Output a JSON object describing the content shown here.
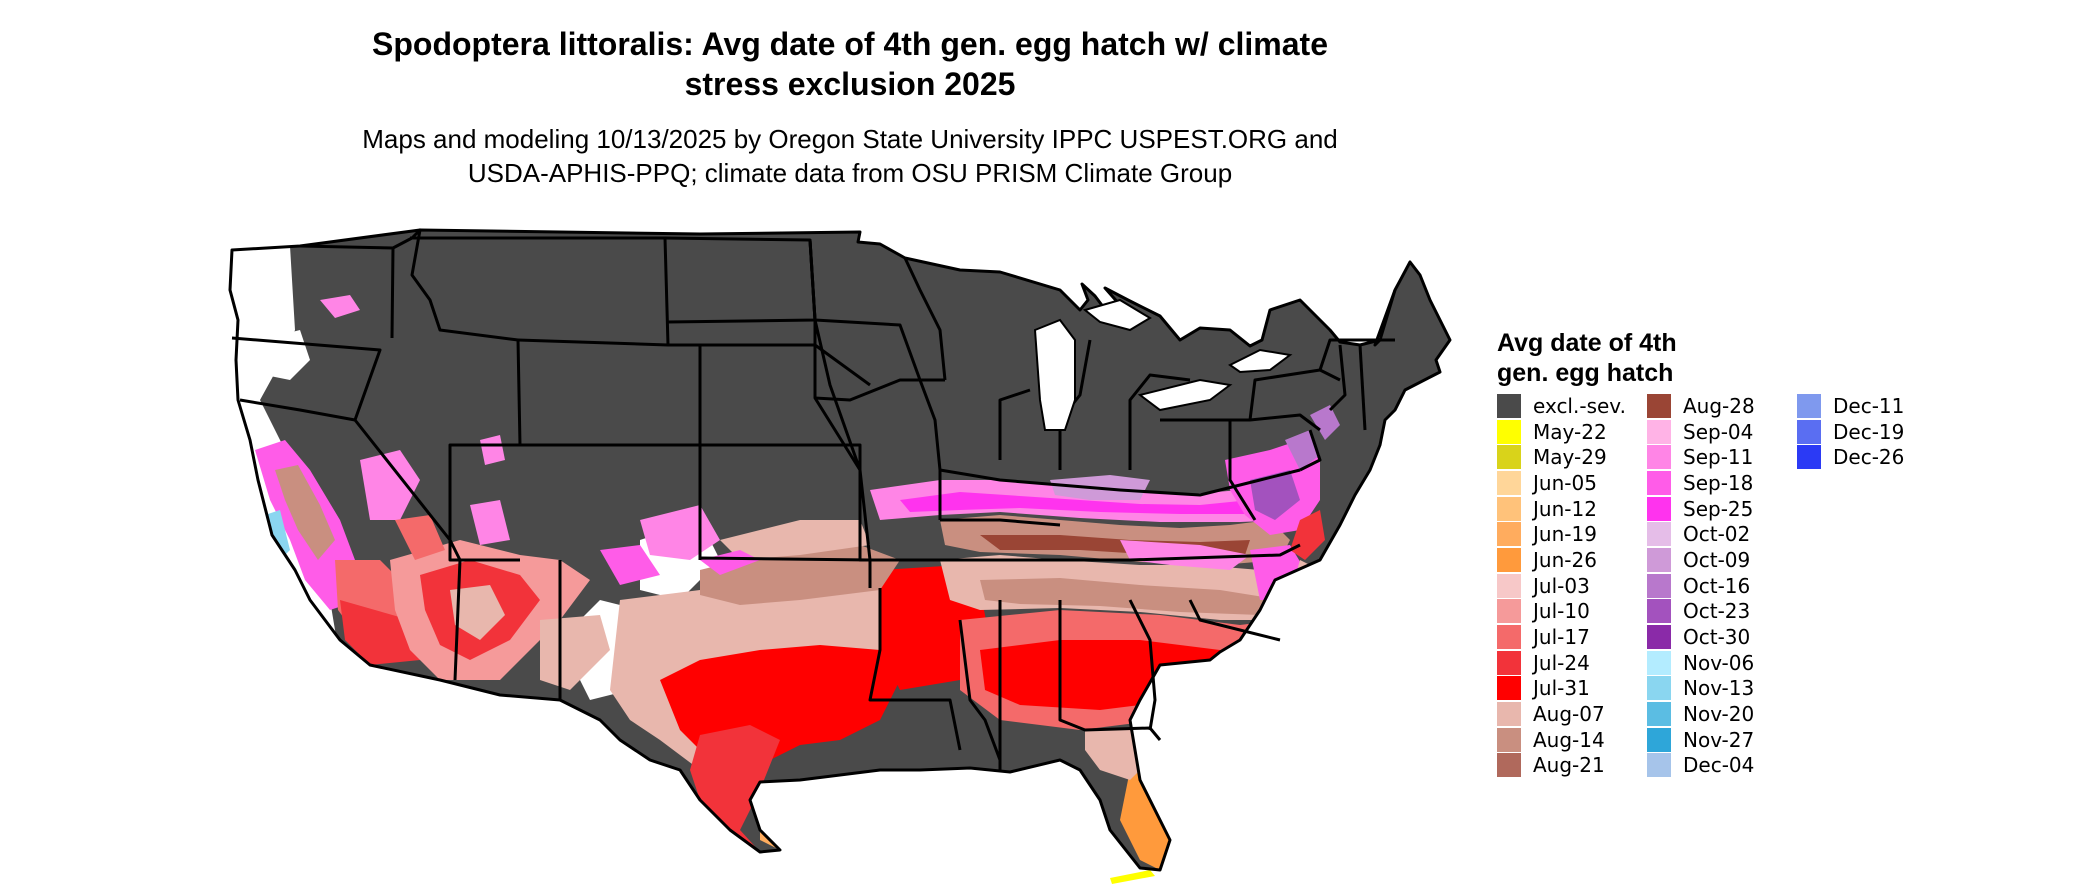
{
  "title_line1": "Spodoptera littoralis: Avg date of 4th gen. egg hatch w/ climate",
  "title_line2": "stress exclusion 2025",
  "subtitle_line1": "Maps and modeling 10/13/2025 by Oregon State University IPPC USPEST.ORG and",
  "subtitle_line2": "USDA-APHIS-PPQ; climate data from OSU PRISM Climate Group",
  "legend": {
    "title_line1": "Avg date of 4th",
    "title_line2": "gen. egg hatch",
    "columns": [
      [
        {
          "label": "excl.-sev.",
          "color": "#4a4a4a"
        },
        {
          "label": "May-22",
          "color": "#ffff00"
        },
        {
          "label": "May-29",
          "color": "#d9d31a"
        },
        {
          "label": "Jun-05",
          "color": "#ffd699"
        },
        {
          "label": "Jun-12",
          "color": "#ffc27a"
        },
        {
          "label": "Jun-19",
          "color": "#ffac5e"
        },
        {
          "label": "Jun-26",
          "color": "#ff9a3c"
        },
        {
          "label": "Jul-03",
          "color": "#f7c8c8"
        },
        {
          "label": "Jul-10",
          "color": "#f59a9a"
        },
        {
          "label": "Jul-17",
          "color": "#f46a6a"
        },
        {
          "label": "Jul-24",
          "color": "#f2333a"
        },
        {
          "label": "Jul-31",
          "color": "#ff0000"
        },
        {
          "label": "Aug-07",
          "color": "#e8b7ad"
        },
        {
          "label": "Aug-14",
          "color": "#c98f80"
        },
        {
          "label": "Aug-21",
          "color": "#b0695c"
        }
      ],
      [
        {
          "label": "Aug-28",
          "color": "#9a4535"
        },
        {
          "label": "Sep-04",
          "color": "#ffb3e6"
        },
        {
          "label": "Sep-11",
          "color": "#ff85e6"
        },
        {
          "label": "Sep-18",
          "color": "#ff5ce8"
        },
        {
          "label": "Sep-25",
          "color": "#ff33ee"
        },
        {
          "label": "Oct-02",
          "color": "#e5bde8"
        },
        {
          "label": "Oct-09",
          "color": "#cf9ad8"
        },
        {
          "label": "Oct-16",
          "color": "#b878cc"
        },
        {
          "label": "Oct-23",
          "color": "#a352be"
        },
        {
          "label": "Oct-30",
          "color": "#8a2aa8"
        },
        {
          "label": "Nov-06",
          "color": "#b3ecff"
        },
        {
          "label": "Nov-13",
          "color": "#8ad6f0"
        },
        {
          "label": "Nov-20",
          "color": "#5bbde3"
        },
        {
          "label": "Nov-27",
          "color": "#2ea6d9"
        },
        {
          "label": "Dec-04",
          "color": "#a6c4ea"
        }
      ],
      [
        {
          "label": "Dec-11",
          "color": "#7f99ee"
        },
        {
          "label": "Dec-19",
          "color": "#5a6ef2"
        },
        {
          "label": "Dec-26",
          "color": "#2b3af5"
        }
      ]
    ]
  },
  "colors": {
    "excluded": "#4a4a4a",
    "border": "#000000",
    "water": "#ffffff"
  }
}
